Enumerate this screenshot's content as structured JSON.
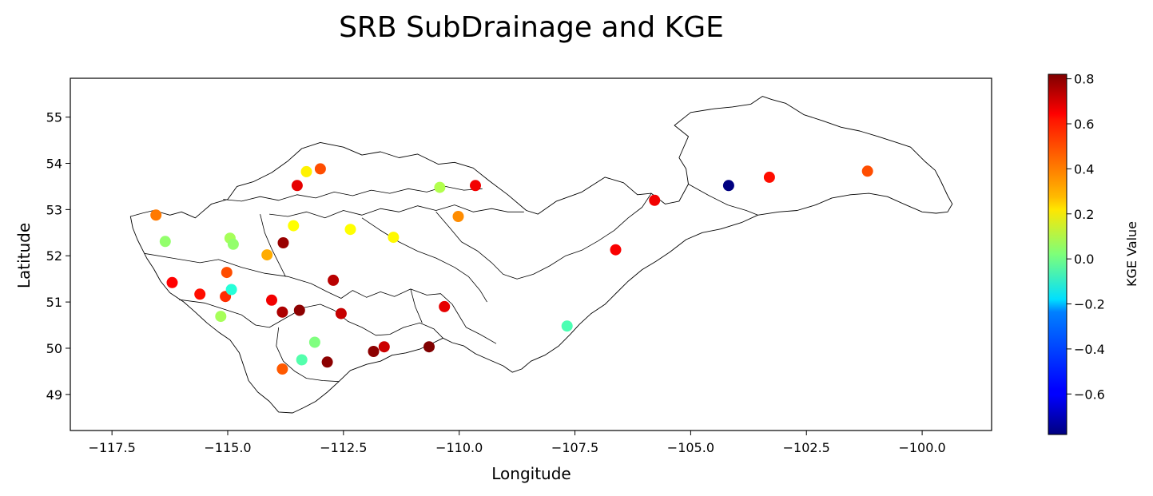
{
  "chart_data": {
    "type": "scatter",
    "title": "SRB SubDrainage and KGE",
    "xlabel": "Longitude",
    "ylabel": "Latitude",
    "xlim": [
      -118.4,
      -98.5
    ],
    "ylim": [
      48.22,
      55.84
    ],
    "x_ticks": [
      -117.5,
      -115.0,
      -112.5,
      -110.0,
      -107.5,
      -105.0,
      -102.5,
      -100.0
    ],
    "x_tick_labels": [
      "−117.5",
      "−115.0",
      "−112.5",
      "−110.0",
      "−107.5",
      "−105.0",
      "−102.5",
      "−100.0"
    ],
    "y_ticks": [
      49,
      50,
      51,
      52,
      53,
      54,
      55
    ],
    "y_tick_labels": [
      "49",
      "50",
      "51",
      "52",
      "53",
      "54",
      "55"
    ],
    "colorbar": {
      "label": "KGE Value",
      "colormap": "jet",
      "range": [
        -0.78,
        0.82
      ],
      "ticks": [
        -0.6,
        -0.4,
        -0.2,
        0.0,
        0.2,
        0.4,
        0.6,
        0.8
      ],
      "tick_labels": [
        "−0.6",
        "−0.4",
        "−0.2",
        "0.0",
        "0.2",
        "0.4",
        "0.6",
        "0.8"
      ]
    },
    "grid": false,
    "points": [
      {
        "lon": -116.55,
        "lat": 52.88,
        "kge": 0.43
      },
      {
        "lon": -116.35,
        "lat": 52.31,
        "kge": 0.05
      },
      {
        "lon": -116.2,
        "lat": 51.42,
        "kge": 0.62
      },
      {
        "lon": -115.6,
        "lat": 51.17,
        "kge": 0.6
      },
      {
        "lon": -115.15,
        "lat": 50.69,
        "kge": 0.08
      },
      {
        "lon": -115.05,
        "lat": 51.12,
        "kge": 0.55
      },
      {
        "lon": -115.02,
        "lat": 51.64,
        "kge": 0.5
      },
      {
        "lon": -114.95,
        "lat": 52.38,
        "kge": 0.08
      },
      {
        "lon": -114.88,
        "lat": 52.25,
        "kge": 0.05
      },
      {
        "lon": -114.92,
        "lat": 51.27,
        "kge": -0.12
      },
      {
        "lon": -114.15,
        "lat": 52.02,
        "kge": 0.35
      },
      {
        "lon": -114.05,
        "lat": 51.04,
        "kge": 0.64
      },
      {
        "lon": -113.8,
        "lat": 52.28,
        "kge": 0.78
      },
      {
        "lon": -113.82,
        "lat": 50.78,
        "kge": 0.75
      },
      {
        "lon": -113.82,
        "lat": 49.55,
        "kge": 0.48
      },
      {
        "lon": -113.58,
        "lat": 52.65,
        "kge": 0.22
      },
      {
        "lon": -113.5,
        "lat": 53.52,
        "kge": 0.66
      },
      {
        "lon": -113.45,
        "lat": 50.82,
        "kge": 0.8
      },
      {
        "lon": -113.4,
        "lat": 49.75,
        "kge": -0.05
      },
      {
        "lon": -113.3,
        "lat": 53.82,
        "kge": 0.24
      },
      {
        "lon": -113.12,
        "lat": 50.13,
        "kge": 0.02
      },
      {
        "lon": -113.0,
        "lat": 53.88,
        "kge": 0.5
      },
      {
        "lon": -112.85,
        "lat": 49.7,
        "kge": 0.8
      },
      {
        "lon": -112.72,
        "lat": 51.47,
        "kge": 0.73
      },
      {
        "lon": -112.55,
        "lat": 50.75,
        "kge": 0.71
      },
      {
        "lon": -112.35,
        "lat": 52.57,
        "kge": 0.22
      },
      {
        "lon": -111.85,
        "lat": 49.93,
        "kge": 0.8
      },
      {
        "lon": -111.62,
        "lat": 50.03,
        "kge": 0.7
      },
      {
        "lon": -111.42,
        "lat": 52.4,
        "kge": 0.23
      },
      {
        "lon": -110.65,
        "lat": 50.03,
        "kge": 0.82
      },
      {
        "lon": -110.42,
        "lat": 53.48,
        "kge": 0.1
      },
      {
        "lon": -110.32,
        "lat": 50.9,
        "kge": 0.66
      },
      {
        "lon": -110.02,
        "lat": 52.85,
        "kge": 0.4
      },
      {
        "lon": -109.65,
        "lat": 53.52,
        "kge": 0.64
      },
      {
        "lon": -107.67,
        "lat": 50.48,
        "kge": -0.06
      },
      {
        "lon": -106.62,
        "lat": 52.13,
        "kge": 0.63
      },
      {
        "lon": -105.78,
        "lat": 53.2,
        "kge": 0.64
      },
      {
        "lon": -104.18,
        "lat": 53.52,
        "kge": -0.78
      },
      {
        "lon": -103.3,
        "lat": 53.7,
        "kge": 0.6
      },
      {
        "lon": -101.18,
        "lat": 53.83,
        "kge": 0.5
      }
    ],
    "subbasin_outline": {
      "stroke": "#000000",
      "outer": [
        [
          -116.85,
          52.92
        ],
        [
          -116.6,
          52.98
        ],
        [
          -116.25,
          52.88
        ],
        [
          -116.0,
          52.95
        ],
        [
          -115.7,
          52.82
        ],
        [
          -115.35,
          53.12
        ],
        [
          -115.0,
          53.22
        ],
        [
          -114.8,
          53.5
        ],
        [
          -114.45,
          53.6
        ],
        [
          -114.05,
          53.8
        ],
        [
          -113.7,
          54.05
        ],
        [
          -113.4,
          54.32
        ],
        [
          -113.0,
          54.45
        ],
        [
          -112.5,
          54.35
        ],
        [
          -112.1,
          54.18
        ],
        [
          -111.7,
          54.25
        ],
        [
          -111.3,
          54.12
        ],
        [
          -110.9,
          54.2
        ],
        [
          -110.45,
          53.98
        ],
        [
          -110.1,
          54.02
        ],
        [
          -109.7,
          53.9
        ],
        [
          -109.35,
          53.62
        ],
        [
          -108.95,
          53.32
        ],
        [
          -108.55,
          52.98
        ],
        [
          -108.3,
          52.9
        ],
        [
          -107.9,
          53.18
        ],
        [
          -107.35,
          53.38
        ],
        [
          -106.85,
          53.7
        ],
        [
          -106.45,
          53.58
        ],
        [
          -106.15,
          53.32
        ],
        [
          -105.85,
          53.35
        ],
        [
          -105.55,
          53.12
        ],
        [
          -105.25,
          53.18
        ],
        [
          -105.05,
          53.55
        ],
        [
          -105.1,
          53.88
        ],
        [
          -105.25,
          54.12
        ],
        [
          -105.05,
          54.58
        ],
        [
          -105.35,
          54.82
        ],
        [
          -105.0,
          55.1
        ],
        [
          -104.5,
          55.18
        ],
        [
          -104.1,
          55.22
        ],
        [
          -103.7,
          55.28
        ],
        [
          -103.45,
          55.45
        ],
        [
          -103.25,
          55.38
        ],
        [
          -102.95,
          55.3
        ],
        [
          -102.55,
          55.05
        ],
        [
          -102.15,
          54.92
        ],
        [
          -101.75,
          54.78
        ],
        [
          -101.35,
          54.7
        ],
        [
          -100.95,
          54.58
        ],
        [
          -100.55,
          54.45
        ],
        [
          -100.25,
          54.35
        ],
        [
          -99.95,
          54.05
        ],
        [
          -99.72,
          53.85
        ],
        [
          -99.6,
          53.62
        ],
        [
          -99.45,
          53.3
        ],
        [
          -99.35,
          53.12
        ],
        [
          -99.45,
          52.95
        ],
        [
          -99.7,
          52.92
        ],
        [
          -100.0,
          52.95
        ],
        [
          -100.35,
          53.1
        ],
        [
          -100.75,
          53.28
        ],
        [
          -101.15,
          53.35
        ],
        [
          -101.55,
          53.32
        ],
        [
          -101.95,
          53.25
        ],
        [
          -102.3,
          53.1
        ],
        [
          -102.7,
          52.98
        ],
        [
          -103.1,
          52.95
        ],
        [
          -103.55,
          52.88
        ],
        [
          -103.9,
          52.72
        ],
        [
          -104.35,
          52.58
        ],
        [
          -104.75,
          52.5
        ],
        [
          -105.1,
          52.35
        ],
        [
          -105.45,
          52.08
        ],
        [
          -105.75,
          51.88
        ],
        [
          -106.05,
          51.7
        ],
        [
          -106.35,
          51.45
        ],
        [
          -106.6,
          51.2
        ],
        [
          -106.85,
          50.95
        ],
        [
          -107.15,
          50.75
        ],
        [
          -107.4,
          50.52
        ],
        [
          -107.6,
          50.3
        ],
        [
          -107.85,
          50.05
        ],
        [
          -108.15,
          49.85
        ],
        [
          -108.45,
          49.72
        ],
        [
          -108.65,
          49.55
        ],
        [
          -108.85,
          49.48
        ],
        [
          -109.05,
          49.62
        ],
        [
          -109.35,
          49.75
        ],
        [
          -109.65,
          49.88
        ],
        [
          -109.9,
          50.05
        ],
        [
          -110.15,
          50.12
        ],
        [
          -110.35,
          50.22
        ],
        [
          -110.55,
          50.12
        ],
        [
          -110.85,
          49.98
        ],
        [
          -111.15,
          49.9
        ],
        [
          -111.45,
          49.85
        ],
        [
          -111.7,
          49.72
        ],
        [
          -112.0,
          49.65
        ],
        [
          -112.35,
          49.52
        ],
        [
          -112.6,
          49.28
        ],
        [
          -112.85,
          49.05
        ],
        [
          -113.1,
          48.85
        ],
        [
          -113.35,
          48.72
        ],
        [
          -113.6,
          48.6
        ],
        [
          -113.9,
          48.62
        ],
        [
          -114.1,
          48.85
        ],
        [
          -114.35,
          49.05
        ],
        [
          -114.55,
          49.3
        ],
        [
          -114.65,
          49.6
        ],
        [
          -114.75,
          49.9
        ],
        [
          -114.95,
          50.18
        ],
        [
          -115.2,
          50.35
        ],
        [
          -115.45,
          50.55
        ],
        [
          -115.7,
          50.78
        ],
        [
          -115.95,
          51.0
        ],
        [
          -116.25,
          51.2
        ],
        [
          -116.45,
          51.45
        ],
        [
          -116.6,
          51.72
        ],
        [
          -116.75,
          51.95
        ],
        [
          -116.85,
          52.15
        ],
        [
          -116.95,
          52.35
        ],
        [
          -117.05,
          52.6
        ],
        [
          -117.1,
          52.85
        ],
        [
          -116.85,
          52.92
        ]
      ],
      "inner": [
        [
          [
            -116.8,
            52.05
          ],
          [
            -116.2,
            51.95
          ],
          [
            -115.6,
            51.85
          ],
          [
            -115.2,
            51.92
          ],
          [
            -114.7,
            51.75
          ],
          [
            -114.2,
            51.62
          ],
          [
            -113.7,
            51.55
          ],
          [
            -113.2,
            51.4
          ],
          [
            -112.85,
            51.22
          ],
          [
            -112.55,
            51.08
          ],
          [
            -112.3,
            51.25
          ],
          [
            -112.0,
            51.1
          ],
          [
            -111.7,
            51.22
          ],
          [
            -111.4,
            51.12
          ],
          [
            -111.05,
            51.28
          ],
          [
            -110.7,
            51.15
          ],
          [
            -110.4,
            51.18
          ],
          [
            -110.15,
            50.95
          ],
          [
            -110.0,
            50.7
          ],
          [
            -109.85,
            50.45
          ],
          [
            -109.55,
            50.3
          ],
          [
            -109.2,
            50.1
          ]
        ],
        [
          [
            -116.05,
            51.05
          ],
          [
            -115.5,
            50.98
          ],
          [
            -115.1,
            50.85
          ],
          [
            -114.7,
            50.72
          ],
          [
            -114.4,
            50.5
          ],
          [
            -114.1,
            50.45
          ],
          [
            -113.7,
            50.68
          ],
          [
            -113.35,
            50.88
          ],
          [
            -113.0,
            50.95
          ],
          [
            -112.7,
            50.82
          ],
          [
            -112.4,
            50.58
          ],
          [
            -112.1,
            50.45
          ],
          [
            -111.8,
            50.28
          ],
          [
            -111.5,
            50.3
          ],
          [
            -111.2,
            50.45
          ],
          [
            -110.85,
            50.55
          ],
          [
            -110.55,
            50.42
          ],
          [
            -110.35,
            50.22
          ]
        ],
        [
          [
            -114.1,
            52.9
          ],
          [
            -113.7,
            52.85
          ],
          [
            -113.3,
            52.95
          ],
          [
            -112.9,
            52.82
          ],
          [
            -112.5,
            52.98
          ],
          [
            -112.1,
            52.88
          ],
          [
            -111.7,
            53.02
          ],
          [
            -111.3,
            52.95
          ],
          [
            -110.9,
            53.08
          ],
          [
            -110.5,
            52.98
          ],
          [
            -110.1,
            53.1
          ],
          [
            -109.7,
            52.95
          ],
          [
            -109.3,
            53.02
          ],
          [
            -108.95,
            52.95
          ],
          [
            -108.6,
            52.95
          ]
        ],
        [
          [
            -115.1,
            53.22
          ],
          [
            -114.7,
            53.18
          ],
          [
            -114.3,
            53.28
          ],
          [
            -113.9,
            53.2
          ],
          [
            -113.5,
            53.32
          ],
          [
            -113.1,
            53.25
          ],
          [
            -112.7,
            53.38
          ],
          [
            -112.3,
            53.3
          ],
          [
            -111.9,
            53.42
          ],
          [
            -111.5,
            53.35
          ],
          [
            -111.1,
            53.45
          ],
          [
            -110.7,
            53.38
          ],
          [
            -110.3,
            53.5
          ],
          [
            -109.9,
            53.42
          ],
          [
            -109.5,
            53.45
          ]
        ],
        [
          [
            -114.3,
            52.9
          ],
          [
            -114.2,
            52.5
          ],
          [
            -114.05,
            52.15
          ],
          [
            -113.9,
            51.85
          ],
          [
            -113.75,
            51.55
          ]
        ],
        [
          [
            -112.1,
            52.82
          ],
          [
            -111.7,
            52.55
          ],
          [
            -111.3,
            52.3
          ],
          [
            -110.9,
            52.1
          ],
          [
            -110.5,
            51.95
          ],
          [
            -110.1,
            51.75
          ],
          [
            -109.8,
            51.55
          ],
          [
            -109.55,
            51.25
          ],
          [
            -109.4,
            51.0
          ]
        ],
        [
          [
            -110.5,
            52.95
          ],
          [
            -110.2,
            52.6
          ],
          [
            -109.95,
            52.3
          ],
          [
            -109.6,
            52.1
          ],
          [
            -109.3,
            51.85
          ],
          [
            -109.05,
            51.6
          ],
          [
            -108.75,
            51.5
          ],
          [
            -108.4,
            51.6
          ],
          [
            -108.05,
            51.78
          ],
          [
            -107.7,
            52.0
          ],
          [
            -107.35,
            52.12
          ],
          [
            -107.0,
            52.32
          ],
          [
            -106.65,
            52.55
          ],
          [
            -106.35,
            52.82
          ],
          [
            -106.05,
            53.05
          ],
          [
            -105.85,
            53.35
          ]
        ],
        [
          [
            -105.05,
            53.55
          ],
          [
            -104.6,
            53.3
          ],
          [
            -104.2,
            53.1
          ],
          [
            -103.8,
            52.98
          ],
          [
            -103.55,
            52.88
          ]
        ],
        [
          [
            -113.9,
            50.45
          ],
          [
            -113.95,
            50.05
          ],
          [
            -113.8,
            49.72
          ],
          [
            -113.55,
            49.5
          ],
          [
            -113.3,
            49.35
          ],
          [
            -112.95,
            49.3
          ],
          [
            -112.6,
            49.28
          ]
        ],
        [
          [
            -111.05,
            51.28
          ],
          [
            -110.95,
            50.9
          ],
          [
            -110.8,
            50.55
          ]
        ]
      ]
    }
  }
}
